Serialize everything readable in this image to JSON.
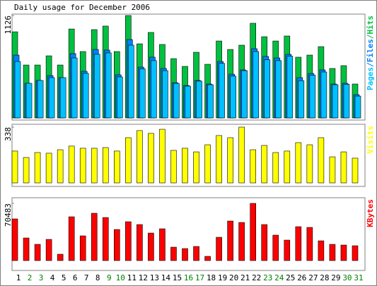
{
  "chart_data": [
    {
      "type": "bar",
      "title": "Daily usage for December 2006",
      "categories": [
        "1",
        "2",
        "3",
        "4",
        "5",
        "6",
        "7",
        "8",
        "9",
        "10",
        "11",
        "12",
        "13",
        "14",
        "15",
        "16",
        "17",
        "18",
        "19",
        "20",
        "21",
        "22",
        "23",
        "24",
        "25",
        "26",
        "27",
        "28",
        "29",
        "30",
        "31"
      ],
      "x_label_colors": [
        "#000000",
        "#008000",
        "#008000",
        "#000000",
        "#000000",
        "#000000",
        "#000000",
        "#000000",
        "#008000",
        "#008000",
        "#000000",
        "#000000",
        "#000000",
        "#000000",
        "#000000",
        "#008000",
        "#008000",
        "#000000",
        "#000000",
        "#000000",
        "#000000",
        "#000000",
        "#008000",
        "#008000",
        "#000000",
        "#000000",
        "#000000",
        "#000000",
        "#000000",
        "#008000",
        "#008000"
      ],
      "legend_separator": "/",
      "series": [
        {
          "name": "Pages",
          "color": "#00c0ff",
          "values": [
            621,
            381,
            412,
            443,
            443,
            660,
            490,
            700,
            715,
            451,
            800,
            540,
            630,
            520,
            380,
            350,
            405,
            365,
            600,
            460,
            520,
            730,
            640,
            630,
            680,
            410,
            470,
            505,
            365,
            370,
            240
          ]
        },
        {
          "name": "Files",
          "color": "#0080ff",
          "values": [
            691,
            381,
            412,
            466,
            443,
            707,
            513,
            753,
            746,
            474,
            862,
            559,
            668,
            544,
            388,
            357,
            412,
            373,
            621,
            481,
            528,
            761,
            676,
            660,
            699,
            443,
            489,
            528,
            373,
            381,
            256
          ]
        },
        {
          "name": "Hits",
          "color": "#00c040",
          "values": [
            947,
            582,
            582,
            683,
            582,
            978,
            730,
            971,
            1010,
            730,
            1126,
            815,
            940,
            808,
            652,
            567,
            722,
            590,
            846,
            753,
            800,
            1041,
            893,
            846,
            901,
            668,
            691,
            784,
            544,
            575,
            373
          ]
        }
      ],
      "ylim": [
        0,
        1126
      ],
      "yticks": [
        1126
      ]
    },
    {
      "type": "bar",
      "series": [
        {
          "name": "Visits",
          "color": "#ffff00",
          "values": [
            193,
            154,
            184,
            180,
            201,
            223,
            210,
            210,
            214,
            193,
            274,
            317,
            300,
            325,
            197,
            210,
            188,
            231,
            287,
            274,
            338,
            201,
            227,
            184,
            193,
            244,
            231,
            274,
            158,
            188,
            150
          ]
        }
      ],
      "ylim": [
        0,
        338
      ],
      "yticks": [
        338
      ]
    },
    {
      "type": "bar",
      "series": [
        {
          "name": "KBytes",
          "color": "#ff0000",
          "values": [
            51330,
            27840,
            20010,
            26100,
            7830,
            53940,
            30450,
            58290,
            53070,
            38280,
            47850,
            44370,
            33930,
            39150,
            16530,
            14790,
            17400,
            5220,
            28710,
            48720,
            46980,
            70483,
            44370,
            31320,
            25230,
            41760,
            40890,
            24360,
            20010,
            19140,
            18270
          ]
        }
      ],
      "ylim": [
        0,
        70483
      ],
      "yticks": [
        70483
      ]
    }
  ]
}
